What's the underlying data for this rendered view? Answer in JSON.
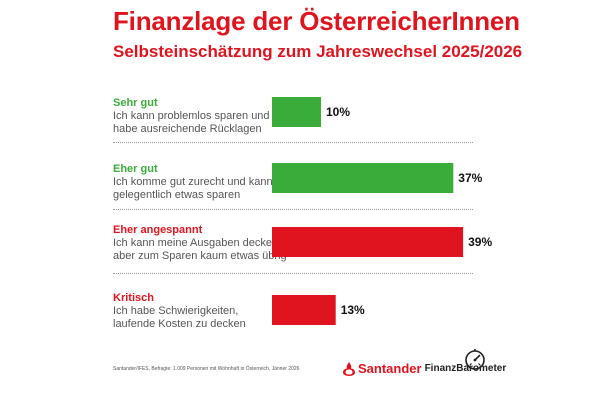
{
  "header": {
    "title": "Finanzlage der ÖsterreicherInnen",
    "subtitle": "Selbsteinschätzung zum Jahreswechsel 2025/2026"
  },
  "rows": [
    {
      "name": "Sehr gut",
      "desc1": "Ich kann problemlos sparen und",
      "desc2": "habe ausreichende Rücklagen",
      "color": "#3aac3a"
    },
    {
      "name": "Eher gut",
      "desc1": "Ich komme gut zurecht und kann",
      "desc2": "gelegentlich etwas sparen",
      "color": "#3aac3a"
    },
    {
      "name": "Eher angespannt",
      "desc1": "Ich kann meine Ausgaben decken,",
      "desc2": "aber zum Sparen kaum etwas übrig",
      "color": "#e0141e"
    },
    {
      "name": "Kritisch",
      "desc1": "Ich habe Schwierigkeiten,",
      "desc2": "laufende Kosten zu decken",
      "color": "#e0141e"
    }
  ],
  "chart_data": {
    "type": "bar",
    "orientation": "horizontal",
    "title": "Finanzlage der ÖsterreicherInnen",
    "subtitle": "Selbsteinschätzung zum Jahreswechsel 2025/2026",
    "categories": [
      "Sehr gut",
      "Eher gut",
      "Eher angespannt",
      "Kritisch"
    ],
    "values": [
      10,
      37,
      39,
      13
    ],
    "value_labels": [
      "10%",
      "37%",
      "39%",
      "13%"
    ],
    "colors": [
      "#3aac3a",
      "#3aac3a",
      "#e0141e",
      "#e0141e"
    ],
    "xlim": [
      0,
      40
    ],
    "grid": false
  },
  "footer": {
    "source": "Santander/IFES, Befragte: 1.009 Personen mit Wohnhaft in Österreich, Jänner 2026",
    "brand_name": "Santander",
    "brand_product": "FinanzBarometer",
    "brand_color": "#e0141e",
    "logo_icon": "santander-flame-icon",
    "badge_icon": "speedometer-gauge-icon"
  }
}
